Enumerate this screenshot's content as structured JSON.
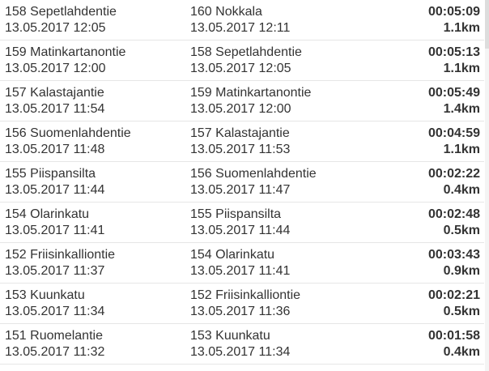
{
  "trips": [
    {
      "from": "158 Sepetlahdentie",
      "from_time": "13.05.2017 12:05",
      "to": "160 Nokkala",
      "to_time": "13.05.2017 12:11",
      "duration": "00:05:09",
      "distance": "1.1km"
    },
    {
      "from": "159 Matinkartanontie",
      "from_time": "13.05.2017 12:00",
      "to": "158 Sepetlahdentie",
      "to_time": "13.05.2017 12:05",
      "duration": "00:05:13",
      "distance": "1.1km"
    },
    {
      "from": "157 Kalastajantie",
      "from_time": "13.05.2017 11:54",
      "to": "159 Matinkartanontie",
      "to_time": "13.05.2017 12:00",
      "duration": "00:05:49",
      "distance": "1.4km"
    },
    {
      "from": "156 Suomenlahdentie",
      "from_time": "13.05.2017 11:48",
      "to": "157 Kalastajantie",
      "to_time": "13.05.2017 11:53",
      "duration": "00:04:59",
      "distance": "1.1km"
    },
    {
      "from": "155 Piispansilta",
      "from_time": "13.05.2017 11:44",
      "to": "156 Suomenlahdentie",
      "to_time": "13.05.2017 11:47",
      "duration": "00:02:22",
      "distance": "0.4km"
    },
    {
      "from": "154 Olarinkatu",
      "from_time": "13.05.2017 11:41",
      "to": "155 Piispansilta",
      "to_time": "13.05.2017 11:44",
      "duration": "00:02:48",
      "distance": "0.5km"
    },
    {
      "from": "152 Friisinkalliontie",
      "from_time": "13.05.2017 11:37",
      "to": "154 Olarinkatu",
      "to_time": "13.05.2017 11:41",
      "duration": "00:03:43",
      "distance": "0.9km"
    },
    {
      "from": "153 Kuunkatu",
      "from_time": "13.05.2017 11:34",
      "to": "152 Friisinkalliontie",
      "to_time": "13.05.2017 11:36",
      "duration": "00:02:21",
      "distance": "0.5km"
    },
    {
      "from": "151 Ruomelantie",
      "from_time": "13.05.2017 11:32",
      "to": "153 Kuunkatu",
      "to_time": "13.05.2017 11:34",
      "duration": "00:01:58",
      "distance": "0.4km"
    }
  ]
}
